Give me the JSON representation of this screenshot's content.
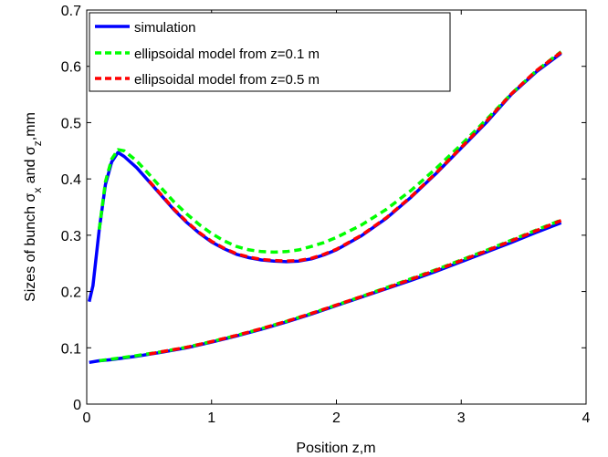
{
  "chart_data": {
    "type": "line",
    "title": "",
    "xlabel": "Position z,m",
    "ylabel": {
      "prefix": "Sizes of bunch σ",
      "sub1": "x",
      "mid": " and σ",
      "sub2": "z",
      "suffix": ",mm"
    },
    "xlim": [
      0,
      4
    ],
    "ylim": [
      0,
      0.7
    ],
    "xticks": [
      "0",
      "1",
      "2",
      "3",
      "4"
    ],
    "yticks": [
      "0",
      "0.1",
      "0.2",
      "0.3",
      "0.4",
      "0.5",
      "0.6",
      "0.7"
    ],
    "grid": false,
    "legend_position": "top-left",
    "series": [
      {
        "name": "simulation",
        "color": "#0000ff",
        "style": "solid",
        "curves": [
          {
            "x": [
              0.02,
              0.05,
              0.1,
              0.15,
              0.2,
              0.25,
              0.3,
              0.4,
              0.5,
              0.6,
              0.7,
              0.8,
              0.9,
              1.0,
              1.1,
              1.2,
              1.3,
              1.4,
              1.5,
              1.6,
              1.7,
              1.8,
              1.9,
              2.0,
              2.2,
              2.4,
              2.6,
              2.8,
              3.0,
              3.2,
              3.4,
              3.6,
              3.8
            ],
            "y": [
              0.182,
              0.21,
              0.31,
              0.39,
              0.43,
              0.447,
              0.44,
              0.42,
              0.395,
              0.37,
              0.345,
              0.323,
              0.304,
              0.288,
              0.276,
              0.266,
              0.26,
              0.256,
              0.254,
              0.253,
              0.254,
              0.258,
              0.265,
              0.274,
              0.299,
              0.33,
              0.368,
              0.41,
              0.455,
              0.5,
              0.55,
              0.59,
              0.623
            ]
          },
          {
            "x": [
              0.02,
              0.1,
              0.2,
              0.4,
              0.6,
              0.8,
              1.0,
              1.2,
              1.4,
              1.6,
              1.8,
              2.0,
              2.2,
              2.4,
              2.6,
              2.8,
              3.0,
              3.2,
              3.4,
              3.6,
              3.8
            ],
            "y": [
              0.074,
              0.077,
              0.079,
              0.085,
              0.092,
              0.1,
              0.11,
              0.121,
              0.133,
              0.146,
              0.16,
              0.175,
              0.19,
              0.205,
              0.22,
              0.236,
              0.253,
              0.27,
              0.287,
              0.305,
              0.322
            ]
          }
        ]
      },
      {
        "name": "ellipsoidal model from z=0.1 m",
        "color": "#00ff00",
        "style": "dashed",
        "curves": [
          {
            "x": [
              0.1,
              0.15,
              0.2,
              0.25,
              0.3,
              0.4,
              0.5,
              0.6,
              0.7,
              0.8,
              0.9,
              1.0,
              1.1,
              1.2,
              1.3,
              1.4,
              1.5,
              1.6,
              1.7,
              1.8,
              1.9,
              2.0,
              2.2,
              2.4,
              2.6,
              2.8,
              3.0,
              3.2,
              3.4,
              3.6,
              3.8
            ],
            "y": [
              0.31,
              0.395,
              0.435,
              0.452,
              0.45,
              0.432,
              0.408,
              0.383,
              0.359,
              0.338,
              0.319,
              0.303,
              0.29,
              0.28,
              0.274,
              0.271,
              0.27,
              0.271,
              0.274,
              0.28,
              0.287,
              0.296,
              0.318,
              0.346,
              0.38,
              0.419,
              0.461,
              0.505,
              0.551,
              0.592,
              0.626
            ]
          },
          {
            "x": [
              0.1,
              0.2,
              0.4,
              0.6,
              0.8,
              1.0,
              1.2,
              1.4,
              1.6,
              1.8,
              2.0,
              2.2,
              2.4,
              2.6,
              2.8,
              3.0,
              3.2,
              3.4,
              3.6,
              3.8
            ],
            "y": [
              0.077,
              0.08,
              0.086,
              0.093,
              0.101,
              0.111,
              0.122,
              0.134,
              0.147,
              0.161,
              0.176,
              0.191,
              0.207,
              0.223,
              0.239,
              0.256,
              0.273,
              0.291,
              0.309,
              0.327
            ]
          }
        ]
      },
      {
        "name": "ellipsoidal model from z=0.5 m",
        "color": "#ff0000",
        "style": "dashed",
        "curves": [
          {
            "x": [
              0.5,
              0.6,
              0.7,
              0.8,
              0.9,
              1.0,
              1.1,
              1.2,
              1.3,
              1.4,
              1.5,
              1.6,
              1.7,
              1.8,
              1.9,
              2.0,
              2.2,
              2.4,
              2.6,
              2.8,
              3.0,
              3.2,
              3.4,
              3.6,
              3.8
            ],
            "y": [
              0.396,
              0.371,
              0.346,
              0.324,
              0.305,
              0.289,
              0.277,
              0.267,
              0.261,
              0.257,
              0.255,
              0.254,
              0.255,
              0.259,
              0.266,
              0.275,
              0.3,
              0.331,
              0.369,
              0.411,
              0.456,
              0.502,
              0.551,
              0.592,
              0.625
            ]
          },
          {
            "x": [
              0.5,
              0.6,
              0.8,
              1.0,
              1.2,
              1.4,
              1.6,
              1.8,
              2.0,
              2.2,
              2.4,
              2.6,
              2.8,
              3.0,
              3.2,
              3.4,
              3.6,
              3.8
            ],
            "y": [
              0.089,
              0.093,
              0.101,
              0.111,
              0.122,
              0.134,
              0.147,
              0.161,
              0.176,
              0.191,
              0.206,
              0.222,
              0.238,
              0.255,
              0.272,
              0.29,
              0.308,
              0.326
            ]
          }
        ]
      }
    ]
  }
}
